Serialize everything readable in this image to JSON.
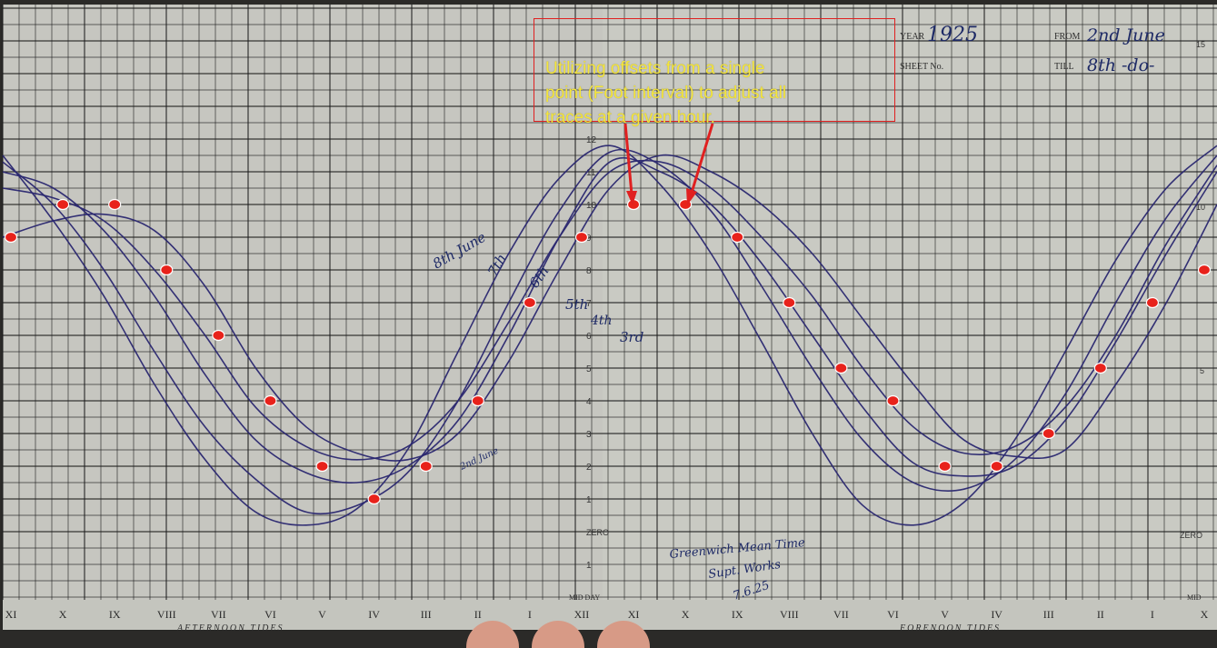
{
  "sheet": {
    "year_label": "YEAR",
    "year_value": "1925",
    "from_label": "FROM",
    "from_value": "2nd June",
    "sheet_label": "SHEET No.",
    "till_label": "TILL",
    "till_value": "8th -do-",
    "corner_mark": "15",
    "midday_label": "MID DAY",
    "midday_right_label": "MID",
    "zero_label": "ZERO",
    "afternoon_label": "AFTERNOON TIDES",
    "forenoon_label": "FORENOON TIDES",
    "signature": "Greenwich Mean Time",
    "signature_line2": "Supt. Works",
    "signature_line3": "7.6.25",
    "right_ticks": [
      "10",
      "5"
    ]
  },
  "annotation": {
    "text": "Utilizing offsets from a single\npoint (Foot interval) to adjust all\ntraces at a given hour."
  },
  "colors": {
    "paper": "#c9cac3",
    "grid": "#1c1c1c",
    "trace": "#2a2770",
    "marker": "#e8221b",
    "annotation_text": "#f5e63a"
  },
  "chart_data": {
    "type": "line",
    "title": "",
    "xlabel": "",
    "ylabel": "",
    "ylim": [
      -2,
      13
    ],
    "grid": true,
    "x_tick_labels": [
      "XI",
      "X",
      "IX",
      "VIII",
      "VII",
      "VI",
      "V",
      "IV",
      "III",
      "II",
      "I",
      "XII",
      "XI",
      "X",
      "IX",
      "VIII",
      "VII",
      "VI",
      "V",
      "IV",
      "III",
      "II",
      "I",
      "X"
    ],
    "y_tick_labels": [
      "12",
      "11",
      "10",
      "9",
      "8",
      "7",
      "6",
      "5",
      "4",
      "3",
      "2",
      "1",
      "ZERO",
      "1"
    ],
    "trace_labels": [
      "8th June",
      "7th",
      "6th",
      "5th",
      "4th",
      "3rd",
      "2nd June"
    ],
    "traces": [
      {
        "label": "8th June",
        "y": [
          9.0,
          9.5,
          9.7,
          9.2,
          7.5,
          5.0,
          3.2,
          2.4,
          2.2,
          3.0,
          5.2,
          8.0,
          10.5,
          11.5,
          11.0,
          10.0,
          8.5,
          6.5,
          4.5,
          2.8,
          2.3,
          2.5,
          4.5,
          7.0,
          10.0
        ]
      },
      {
        "label": "7th",
        "y": [
          10.5,
          10.2,
          9.5,
          8.0,
          6.0,
          3.8,
          2.6,
          2.2,
          2.6,
          4.0,
          6.4,
          9.0,
          11.0,
          11.3,
          10.5,
          9.0,
          7.2,
          5.0,
          3.2,
          2.4,
          2.6,
          3.8,
          6.0,
          8.8,
          11.2
        ]
      },
      {
        "label": "6th",
        "y": [
          11.0,
          10.5,
          9.2,
          7.2,
          4.8,
          2.8,
          1.8,
          1.5,
          2.0,
          3.4,
          6.0,
          9.0,
          11.3,
          11.0,
          10.0,
          8.2,
          6.0,
          3.8,
          2.1,
          1.7,
          2.0,
          3.4,
          5.8,
          8.5,
          11.0
        ]
      },
      {
        "label": "5th",
        "y": [
          11.3,
          10.0,
          8.0,
          5.5,
          3.2,
          1.6,
          0.6,
          0.8,
          1.8,
          4.0,
          7.0,
          9.8,
          11.6,
          11.2,
          9.8,
          7.5,
          5.0,
          2.8,
          1.5,
          1.3,
          2.2,
          4.2,
          7.0,
          9.6,
          11.5
        ]
      },
      {
        "label": "3rd",
        "y": [
          11.5,
          9.5,
          7.2,
          4.5,
          2.2,
          0.6,
          0.2,
          0.7,
          2.5,
          5.5,
          8.5,
          10.8,
          11.8,
          10.6,
          8.5,
          5.8,
          3.0,
          0.8,
          0.2,
          0.9,
          2.8,
          5.5,
          8.3,
          10.5,
          11.8
        ]
      }
    ],
    "marker_values": [
      {
        "hour": "XI",
        "value": 9.0
      },
      {
        "hour": "X",
        "value": 10.0
      },
      {
        "hour": "IX",
        "value": 10.0
      },
      {
        "hour": "VIII",
        "value": 8.0
      },
      {
        "hour": "VII",
        "value": 6.0
      },
      {
        "hour": "VI",
        "value": 4.0
      },
      {
        "hour": "V",
        "value": 2.0
      },
      {
        "hour": "IV",
        "value": 1.0
      },
      {
        "hour": "III",
        "value": 2.0
      },
      {
        "hour": "II",
        "value": 4.0
      },
      {
        "hour": "I",
        "value": 7.0
      },
      {
        "hour": "XII",
        "value": 9.0
      },
      {
        "hour": "XI",
        "value": 10.0
      },
      {
        "hour": "X",
        "value": 10.0
      },
      {
        "hour": "IX",
        "value": 9.0
      },
      {
        "hour": "VIII",
        "value": 7.0
      },
      {
        "hour": "VII",
        "value": 5.0
      },
      {
        "hour": "VI",
        "value": 4.0
      },
      {
        "hour": "V",
        "value": 2.0
      },
      {
        "hour": "IV",
        "value": 2.0
      },
      {
        "hour": "III",
        "value": 3.0
      },
      {
        "hour": "II",
        "value": 5.0
      },
      {
        "hour": "I",
        "value": 7.0
      },
      {
        "hour": "X",
        "value": 8.0
      }
    ]
  }
}
